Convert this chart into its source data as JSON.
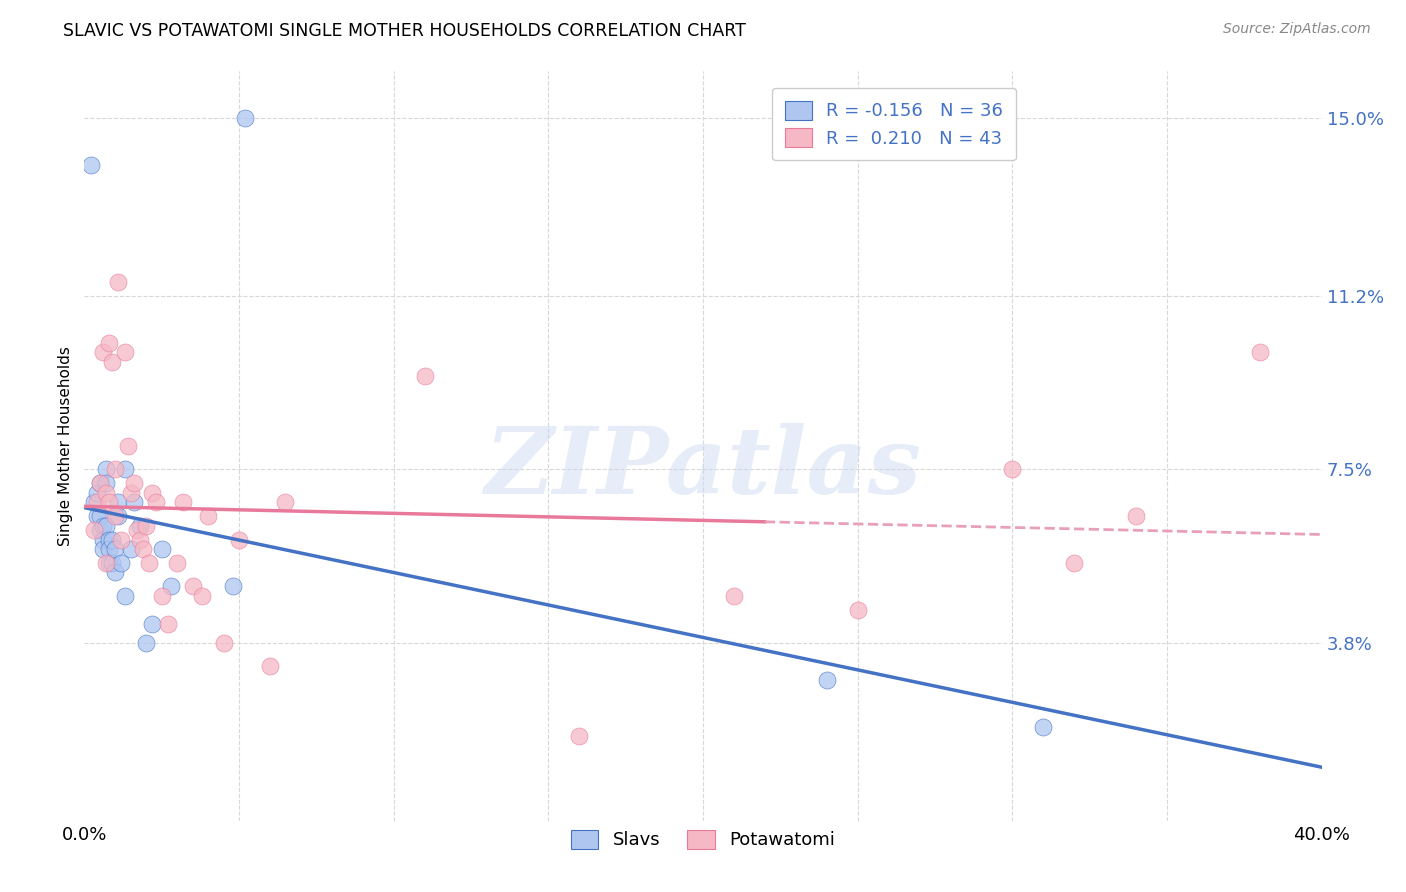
{
  "title": "SLAVIC VS POTAWATOMI SINGLE MOTHER HOUSEHOLDS CORRELATION CHART",
  "source": "Source: ZipAtlas.com",
  "ylabel": "Single Mother Households",
  "xlim": [
    0.0,
    0.4
  ],
  "ylim": [
    0.0,
    0.16
  ],
  "ytick_positions": [
    0.038,
    0.075,
    0.112,
    0.15
  ],
  "ytick_labels": [
    "3.8%",
    "7.5%",
    "11.2%",
    "15.0%"
  ],
  "grid_color": "#d8d8d8",
  "background_color": "#ffffff",
  "slavs_color": "#aec6f0",
  "potawatomi_color": "#f5b8c4",
  "slavs_line_color": "#4472c4",
  "potawatomi_line_color": "#e8799a",
  "potawatomi_line_dash_color": "#e8a0b8",
  "legend_label_color": "#4472c4",
  "watermark_text": "ZIPatlas",
  "slavs_scatter_x": [
    0.002,
    0.003,
    0.004,
    0.004,
    0.005,
    0.005,
    0.005,
    0.006,
    0.006,
    0.006,
    0.007,
    0.007,
    0.007,
    0.008,
    0.008,
    0.008,
    0.009,
    0.009,
    0.01,
    0.01,
    0.011,
    0.011,
    0.012,
    0.013,
    0.013,
    0.015,
    0.016,
    0.018,
    0.02,
    0.022,
    0.025,
    0.028,
    0.048,
    0.052,
    0.24,
    0.31
  ],
  "slavs_scatter_y": [
    0.14,
    0.068,
    0.065,
    0.07,
    0.065,
    0.062,
    0.072,
    0.063,
    0.06,
    0.058,
    0.075,
    0.072,
    0.063,
    0.06,
    0.058,
    0.055,
    0.06,
    0.055,
    0.058,
    0.053,
    0.068,
    0.065,
    0.055,
    0.048,
    0.075,
    0.058,
    0.068,
    0.063,
    0.038,
    0.042,
    0.058,
    0.05,
    0.05,
    0.15,
    0.03,
    0.02
  ],
  "potawatomi_scatter_x": [
    0.003,
    0.004,
    0.005,
    0.006,
    0.007,
    0.007,
    0.008,
    0.008,
    0.009,
    0.01,
    0.01,
    0.011,
    0.012,
    0.013,
    0.014,
    0.015,
    0.016,
    0.017,
    0.018,
    0.019,
    0.02,
    0.021,
    0.022,
    0.023,
    0.025,
    0.027,
    0.03,
    0.032,
    0.035,
    0.038,
    0.04,
    0.045,
    0.05,
    0.06,
    0.065,
    0.11,
    0.16,
    0.21,
    0.25,
    0.3,
    0.32,
    0.34,
    0.38
  ],
  "potawatomi_scatter_y": [
    0.062,
    0.068,
    0.072,
    0.1,
    0.055,
    0.07,
    0.068,
    0.102,
    0.098,
    0.075,
    0.065,
    0.115,
    0.06,
    0.1,
    0.08,
    0.07,
    0.072,
    0.062,
    0.06,
    0.058,
    0.063,
    0.055,
    0.07,
    0.068,
    0.048,
    0.042,
    0.055,
    0.068,
    0.05,
    0.048,
    0.065,
    0.038,
    0.06,
    0.033,
    0.068,
    0.095,
    0.018,
    0.048,
    0.045,
    0.075,
    0.055,
    0.065,
    0.1
  ]
}
